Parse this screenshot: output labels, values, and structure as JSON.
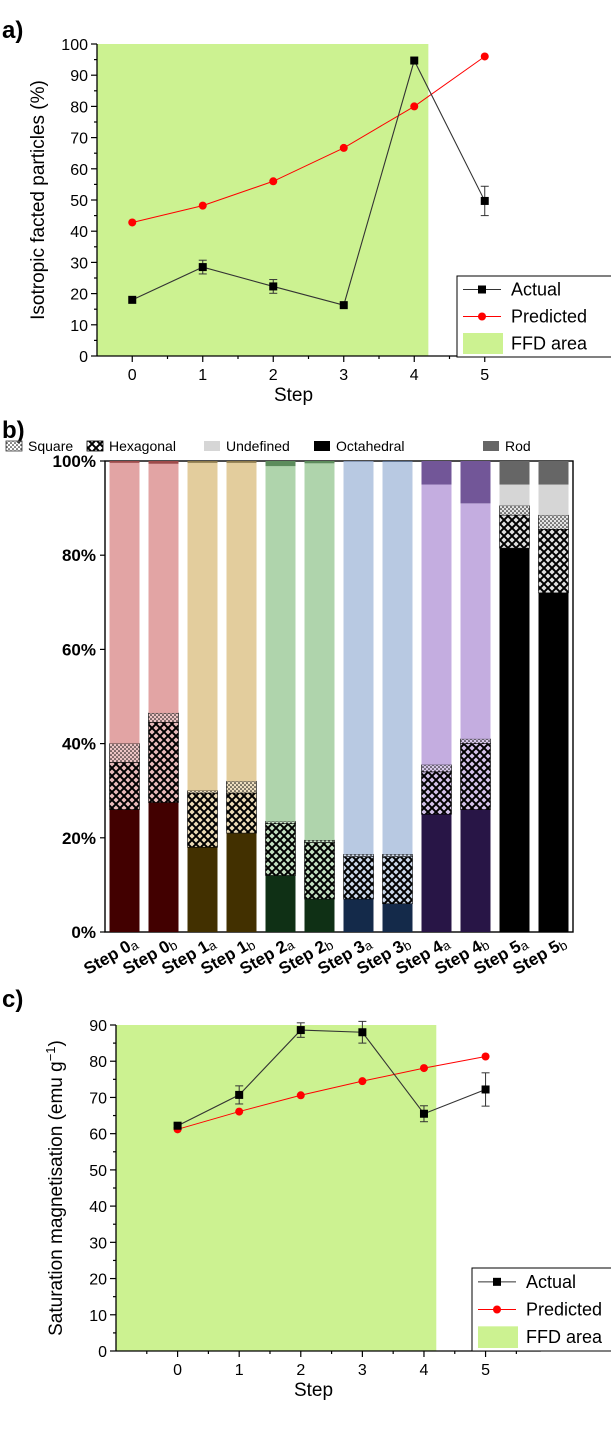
{
  "chart_data": [
    {
      "panel": "a)",
      "type": "line",
      "xlabel": "Step",
      "ylabel": "Isotropic facted particles (%)",
      "x": [
        0,
        1,
        2,
        3,
        4,
        5
      ],
      "xlim": [
        -0.5,
        5.5
      ],
      "ylim": [
        0,
        100
      ],
      "yticks": [
        0,
        10,
        20,
        30,
        40,
        50,
        60,
        70,
        80,
        90,
        100
      ],
      "shaded_region": {
        "label": "FFD area",
        "x_range": [
          -0.5,
          4.2
        ],
        "color": "#ccf291"
      },
      "series": [
        {
          "name": "Actual",
          "color": "#333333",
          "marker": "square",
          "values": [
            18,
            28.5,
            22.3,
            16.3,
            94.7,
            49.7
          ],
          "errors": [
            0,
            2.2,
            2.2,
            0,
            0,
            4.7
          ]
        },
        {
          "name": "Predicted",
          "color": "#ff0000",
          "marker": "circle",
          "values": [
            42.8,
            48.2,
            56,
            66.7,
            80,
            96
          ],
          "errors": [
            0,
            0,
            0,
            0,
            0,
            0
          ]
        }
      ],
      "legend_position": "bottom-right"
    },
    {
      "panel": "b)",
      "type": "bar",
      "stacked": true,
      "categories": [
        "Step 0a",
        "Step 0b",
        "Step 1a",
        "Step 1b",
        "Step 2a",
        "Step 2b",
        "Step 3a",
        "Step 3b",
        "Step 4a",
        "Step 4b",
        "Step 5a",
        "Step 5b"
      ],
      "category_labels": [
        {
          "main": "Step 0",
          "sub": "a"
        },
        {
          "main": "Step 0",
          "sub": "b"
        },
        {
          "main": "Step 1",
          "sub": "a"
        },
        {
          "main": "Step 1",
          "sub": "b"
        },
        {
          "main": "Step 2",
          "sub": "a"
        },
        {
          "main": "Step 2",
          "sub": "b"
        },
        {
          "main": "Step 3",
          "sub": "a"
        },
        {
          "main": "Step 3",
          "sub": "b"
        },
        {
          "main": "Step 4",
          "sub": "a"
        },
        {
          "main": "Step 4",
          "sub": "b"
        },
        {
          "main": "Step 5",
          "sub": "a"
        },
        {
          "main": "Step 5",
          "sub": "b"
        }
      ],
      "ylim": [
        0,
        100
      ],
      "yticks": [
        "0%",
        "20%",
        "40%",
        "60%",
        "80%",
        "100%"
      ],
      "legend_position": "top",
      "series": [
        {
          "name": "Octahedral",
          "values": [
            26,
            27.5,
            18,
            21,
            12,
            7,
            7,
            6,
            25,
            26,
            81.5,
            72
          ]
        },
        {
          "name": "Hexagonal",
          "values": [
            10,
            17,
            11.5,
            8.5,
            11,
            12,
            9,
            10,
            9,
            14,
            7,
            13.5
          ]
        },
        {
          "name": "Square",
          "values": [
            4,
            2,
            0.5,
            2.5,
            0.5,
            0.5,
            0.5,
            0.5,
            1.5,
            1,
            2,
            3
          ]
        },
        {
          "name": "Undefined",
          "values": [
            59.6,
            52.9,
            69.6,
            67.6,
            75.4,
            80,
            83.4,
            83.3,
            59.5,
            50,
            4.5,
            6.5
          ]
        },
        {
          "name": "Rod",
          "values": [
            0.4,
            0.6,
            0.4,
            0.4,
            1.1,
            0.5,
            0.1,
            0.2,
            5,
            9,
            5,
            5
          ]
        }
      ],
      "group_colors": {
        "Octahedral": [
          "#420000",
          "#423000",
          "#0f3015",
          "#142a4a",
          "#281546",
          "#000000"
        ],
        "Undefined": [
          "#e2a4a4",
          "#e3cd9d",
          "#afd4ac",
          "#b8c9e2",
          "#c4ade0",
          "#d6d6d6"
        ],
        "Rod": [
          "#9e4a4a",
          "#8e7a4a",
          "#5c8c5c",
          "#5a6f92",
          "#725698",
          "#666666"
        ]
      }
    },
    {
      "panel": "c)",
      "type": "line",
      "xlabel": "Step",
      "ylabel_main": "Saturation magnetisation (emu g",
      "ylabel_sup": "−1",
      "ylabel_end": ")",
      "x": [
        0,
        1,
        2,
        3,
        4,
        5
      ],
      "xlim": [
        -1,
        5.9
      ],
      "ylim": [
        0,
        90
      ],
      "yticks": [
        0,
        10,
        20,
        30,
        40,
        50,
        60,
        70,
        80,
        90
      ],
      "shaded_region": {
        "label": "FFD area",
        "x_range": [
          -1,
          4.2
        ],
        "color": "#ccf291"
      },
      "series": [
        {
          "name": "Actual",
          "color": "#333333",
          "marker": "square",
          "values": [
            62.2,
            70.7,
            88.6,
            88,
            65.5,
            72.2
          ],
          "errors": [
            0.5,
            2.5,
            2,
            3,
            2.2,
            4.6
          ]
        },
        {
          "name": "Predicted",
          "color": "#ff0000",
          "marker": "circle",
          "values": [
            61.2,
            66.1,
            70.6,
            74.5,
            78.1,
            81.3
          ],
          "errors": [
            0,
            0,
            0,
            0,
            0,
            0
          ]
        }
      ],
      "legend_position": "bottom-right"
    }
  ]
}
